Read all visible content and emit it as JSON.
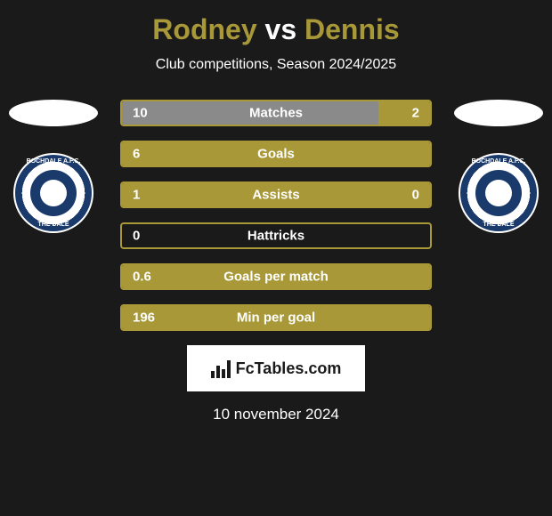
{
  "header": {
    "player1_name": "Rodney",
    "separator": "vs",
    "player2_name": "Dennis",
    "player1_color": "#a89838",
    "player2_color": "#a89838",
    "subtitle": "Club competitions, Season 2024/2025"
  },
  "club": {
    "name_top": "ROCHDALE A.F.C.",
    "name_bottom": "THE DALE",
    "crest_outer_color": "#1a3a6b",
    "crest_inner_color": "#1a3a6b"
  },
  "stats": [
    {
      "label": "Matches",
      "left_value": "10",
      "right_value": "2",
      "left_pct": 83.3,
      "right_pct": 16.7,
      "left_color": "#8a8a8a",
      "right_color": "#a89838",
      "border_color": "#a89838"
    },
    {
      "label": "Goals",
      "left_value": "6",
      "right_value": "",
      "left_pct": 100,
      "right_pct": 0,
      "left_color": "#a89838",
      "right_color": "#a89838",
      "border_color": "#a89838"
    },
    {
      "label": "Assists",
      "left_value": "1",
      "right_value": "0",
      "left_pct": 100,
      "right_pct": 0,
      "left_color": "#a89838",
      "right_color": "#a89838",
      "border_color": "#a89838"
    },
    {
      "label": "Hattricks",
      "left_value": "0",
      "right_value": "",
      "left_pct": 0,
      "right_pct": 0,
      "left_color": "#a89838",
      "right_color": "#a89838",
      "border_color": "#a89838"
    },
    {
      "label": "Goals per match",
      "left_value": "0.6",
      "right_value": "",
      "left_pct": 100,
      "right_pct": 0,
      "left_color": "#a89838",
      "right_color": "#a89838",
      "border_color": "#a89838"
    },
    {
      "label": "Min per goal",
      "left_value": "196",
      "right_value": "",
      "left_pct": 100,
      "right_pct": 0,
      "left_color": "#a89838",
      "right_color": "#a89838",
      "border_color": "#a89838"
    }
  ],
  "watermark": {
    "text": "FcTables.com",
    "background_color": "#ffffff"
  },
  "footer": {
    "date": "10 november 2024"
  },
  "styling": {
    "background_color": "#1a1a1a",
    "title_fontsize": 32,
    "subtitle_fontsize": 16,
    "stat_label_fontsize": 15,
    "stat_value_fontsize": 15,
    "date_fontsize": 17,
    "stat_row_height": 30,
    "stat_row_width": 350,
    "stat_row_gap": 16
  }
}
